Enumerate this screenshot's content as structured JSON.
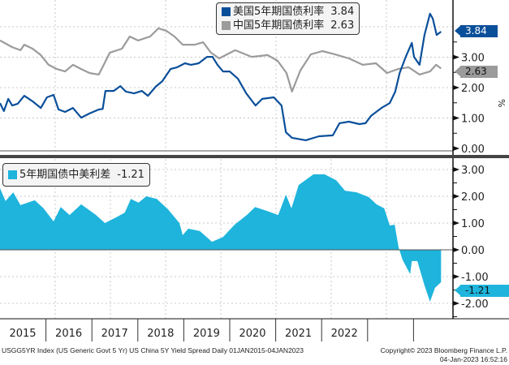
{
  "colors": {
    "us": "#0a4f9a",
    "cn": "#9b9b9b",
    "spread": "#1eb4dc",
    "grid": "#c8c8c8"
  },
  "top_legend": [
    {
      "label": "美国5年期国债利率",
      "value": "3.84"
    },
    {
      "label": "中国5年期国债利率",
      "value": "2.63"
    }
  ],
  "bottom_legend": {
    "label": "5年期国债中美利差",
    "value": "-1.21"
  },
  "top_axis": {
    "ticks": [
      "0.00",
      "1.00",
      "2.00",
      "3.00"
    ],
    "unit": "%"
  },
  "bottom_axis": {
    "ticks": [
      "-2.00",
      "-1.00",
      "0.00",
      "1.00",
      "2.00",
      "3.00"
    ]
  },
  "last_tags": {
    "us": "3.84",
    "cn": "2.63",
    "spread": "-1.21"
  },
  "years": [
    "2015",
    "2016",
    "2017",
    "2018",
    "2019",
    "2020",
    "2021",
    "2022"
  ],
  "footer": {
    "left": "USGG5YR Index (US Generic Govt 5 Yr) US China 5Y Yield Spread  Daily 01JAN2015-04JAN2023",
    "right": "Copyright© 2023 Bloomberg Finance L.P.",
    "timestamp": "04-Jan-2023 16:52:16"
  },
  "chart_data": [
    {
      "type": "line",
      "title": "",
      "xlabel": "",
      "ylabel": "%",
      "ylim": [
        0,
        4.9
      ],
      "xlim": [
        2015.0,
        2023.2
      ],
      "series": [
        {
          "name": "美国5年期国债利率",
          "last": 3.84,
          "points": [
            [
              2015.0,
              1.49
            ],
            [
              2015.07,
              1.23
            ],
            [
              2015.15,
              1.63
            ],
            [
              2015.22,
              1.41
            ],
            [
              2015.32,
              1.47
            ],
            [
              2015.44,
              1.73
            ],
            [
              2015.59,
              1.55
            ],
            [
              2015.74,
              1.33
            ],
            [
              2015.85,
              1.68
            ],
            [
              2015.97,
              1.76
            ],
            [
              2016.06,
              1.28
            ],
            [
              2016.18,
              1.2
            ],
            [
              2016.32,
              1.33
            ],
            [
              2016.47,
              1.01
            ],
            [
              2016.62,
              1.15
            ],
            [
              2016.79,
              1.28
            ],
            [
              2016.86,
              1.3
            ],
            [
              2016.91,
              1.89
            ],
            [
              2017.06,
              1.89
            ],
            [
              2017.18,
              2.05
            ],
            [
              2017.28,
              1.87
            ],
            [
              2017.43,
              1.81
            ],
            [
              2017.57,
              1.89
            ],
            [
              2017.68,
              1.73
            ],
            [
              2017.82,
              2.03
            ],
            [
              2017.94,
              2.21
            ],
            [
              2018.09,
              2.61
            ],
            [
              2018.21,
              2.67
            ],
            [
              2018.35,
              2.8
            ],
            [
              2018.46,
              2.75
            ],
            [
              2018.6,
              2.8
            ],
            [
              2018.75,
              3.01
            ],
            [
              2018.85,
              3.01
            ],
            [
              2018.94,
              2.75
            ],
            [
              2019.04,
              2.53
            ],
            [
              2019.16,
              2.53
            ],
            [
              2019.31,
              2.29
            ],
            [
              2019.46,
              1.81
            ],
            [
              2019.63,
              1.41
            ],
            [
              2019.75,
              1.63
            ],
            [
              2019.96,
              1.68
            ],
            [
              2020.1,
              1.41
            ],
            [
              2020.18,
              0.53
            ],
            [
              2020.29,
              0.35
            ],
            [
              2020.54,
              0.27
            ],
            [
              2020.78,
              0.4
            ],
            [
              2021.03,
              0.43
            ],
            [
              2021.15,
              0.83
            ],
            [
              2021.32,
              0.88
            ],
            [
              2021.51,
              0.8
            ],
            [
              2021.62,
              0.83
            ],
            [
              2021.72,
              1.07
            ],
            [
              2021.91,
              1.33
            ],
            [
              2022.06,
              1.49
            ],
            [
              2022.16,
              1.87
            ],
            [
              2022.24,
              2.48
            ],
            [
              2022.35,
              3.01
            ],
            [
              2022.46,
              3.47
            ],
            [
              2022.5,
              3.01
            ],
            [
              2022.6,
              2.75
            ],
            [
              2022.69,
              3.73
            ],
            [
              2022.79,
              4.43
            ],
            [
              2022.84,
              4.27
            ],
            [
              2022.91,
              3.73
            ],
            [
              2022.99,
              3.84
            ]
          ]
        },
        {
          "name": "中国5年期国债利率",
          "last": 2.63,
          "points": [
            [
              2015.0,
              3.55
            ],
            [
              2015.22,
              3.33
            ],
            [
              2015.37,
              3.23
            ],
            [
              2015.44,
              3.41
            ],
            [
              2015.59,
              3.28
            ],
            [
              2015.74,
              3.07
            ],
            [
              2015.88,
              2.75
            ],
            [
              2016.03,
              2.61
            ],
            [
              2016.18,
              2.53
            ],
            [
              2016.32,
              2.75
            ],
            [
              2016.47,
              2.61
            ],
            [
              2016.62,
              2.48
            ],
            [
              2016.79,
              2.43
            ],
            [
              2016.88,
              2.75
            ],
            [
              2016.99,
              3.15
            ],
            [
              2017.21,
              3.28
            ],
            [
              2017.35,
              3.68
            ],
            [
              2017.5,
              3.55
            ],
            [
              2017.72,
              3.68
            ],
            [
              2017.87,
              3.95
            ],
            [
              2018.01,
              3.87
            ],
            [
              2018.16,
              3.68
            ],
            [
              2018.31,
              3.41
            ],
            [
              2018.53,
              3.41
            ],
            [
              2018.68,
              3.49
            ],
            [
              2018.82,
              3.15
            ],
            [
              2018.97,
              2.96
            ],
            [
              2019.26,
              3.23
            ],
            [
              2019.56,
              3.01
            ],
            [
              2019.85,
              3.07
            ],
            [
              2020.03,
              2.88
            ],
            [
              2020.19,
              2.48
            ],
            [
              2020.29,
              1.87
            ],
            [
              2020.44,
              2.56
            ],
            [
              2020.63,
              3.09
            ],
            [
              2020.84,
              3.2
            ],
            [
              2021.07,
              3.09
            ],
            [
              2021.32,
              2.96
            ],
            [
              2021.57,
              2.75
            ],
            [
              2021.81,
              2.8
            ],
            [
              2022.01,
              2.48
            ],
            [
              2022.21,
              2.61
            ],
            [
              2022.4,
              2.67
            ],
            [
              2022.6,
              2.43
            ],
            [
              2022.79,
              2.53
            ],
            [
              2022.9,
              2.75
            ],
            [
              2022.99,
              2.63
            ]
          ]
        }
      ]
    },
    {
      "type": "area",
      "title": "",
      "xlabel": "",
      "ylabel": "",
      "ylim": [
        -2.6,
        3.5
      ],
      "xlim": [
        2015.0,
        2023.2
      ],
      "series": [
        {
          "name": "5年期国债中美利差",
          "last": -1.21,
          "points": [
            [
              2015.0,
              2.3
            ],
            [
              2015.1,
              1.82
            ],
            [
              2015.24,
              2.15
            ],
            [
              2015.37,
              1.67
            ],
            [
              2015.63,
              1.85
            ],
            [
              2015.79,
              1.55
            ],
            [
              2015.97,
              1.06
            ],
            [
              2016.1,
              1.6
            ],
            [
              2016.26,
              1.3
            ],
            [
              2016.47,
              1.7
            ],
            [
              2016.74,
              1.3
            ],
            [
              2016.9,
              1.0
            ],
            [
              2017.1,
              1.21
            ],
            [
              2017.26,
              1.39
            ],
            [
              2017.37,
              1.9
            ],
            [
              2017.51,
              1.76
            ],
            [
              2017.65,
              2.0
            ],
            [
              2017.84,
              1.9
            ],
            [
              2018.04,
              1.52
            ],
            [
              2018.25,
              1.0
            ],
            [
              2018.31,
              0.55
            ],
            [
              2018.41,
              0.79
            ],
            [
              2018.62,
              0.7
            ],
            [
              2018.84,
              0.3
            ],
            [
              2019.04,
              0.48
            ],
            [
              2019.25,
              0.94
            ],
            [
              2019.47,
              1.3
            ],
            [
              2019.62,
              1.6
            ],
            [
              2019.84,
              1.45
            ],
            [
              2020.04,
              1.3
            ],
            [
              2020.18,
              2.06
            ],
            [
              2020.28,
              1.55
            ],
            [
              2020.41,
              2.42
            ],
            [
              2020.68,
              2.82
            ],
            [
              2020.88,
              2.82
            ],
            [
              2021.09,
              2.6
            ],
            [
              2021.25,
              2.21
            ],
            [
              2021.46,
              2.15
            ],
            [
              2021.68,
              1.97
            ],
            [
              2021.82,
              1.7
            ],
            [
              2021.96,
              1.55
            ],
            [
              2022.06,
              0.91
            ],
            [
              2022.15,
              0.94
            ],
            [
              2022.22,
              0.09
            ],
            [
              2022.29,
              -0.36
            ],
            [
              2022.43,
              -0.91
            ],
            [
              2022.46,
              -0.42
            ],
            [
              2022.56,
              -0.42
            ],
            [
              2022.69,
              -1.33
            ],
            [
              2022.79,
              -1.94
            ],
            [
              2022.88,
              -1.42
            ],
            [
              2022.99,
              -1.21
            ]
          ]
        }
      ]
    }
  ]
}
